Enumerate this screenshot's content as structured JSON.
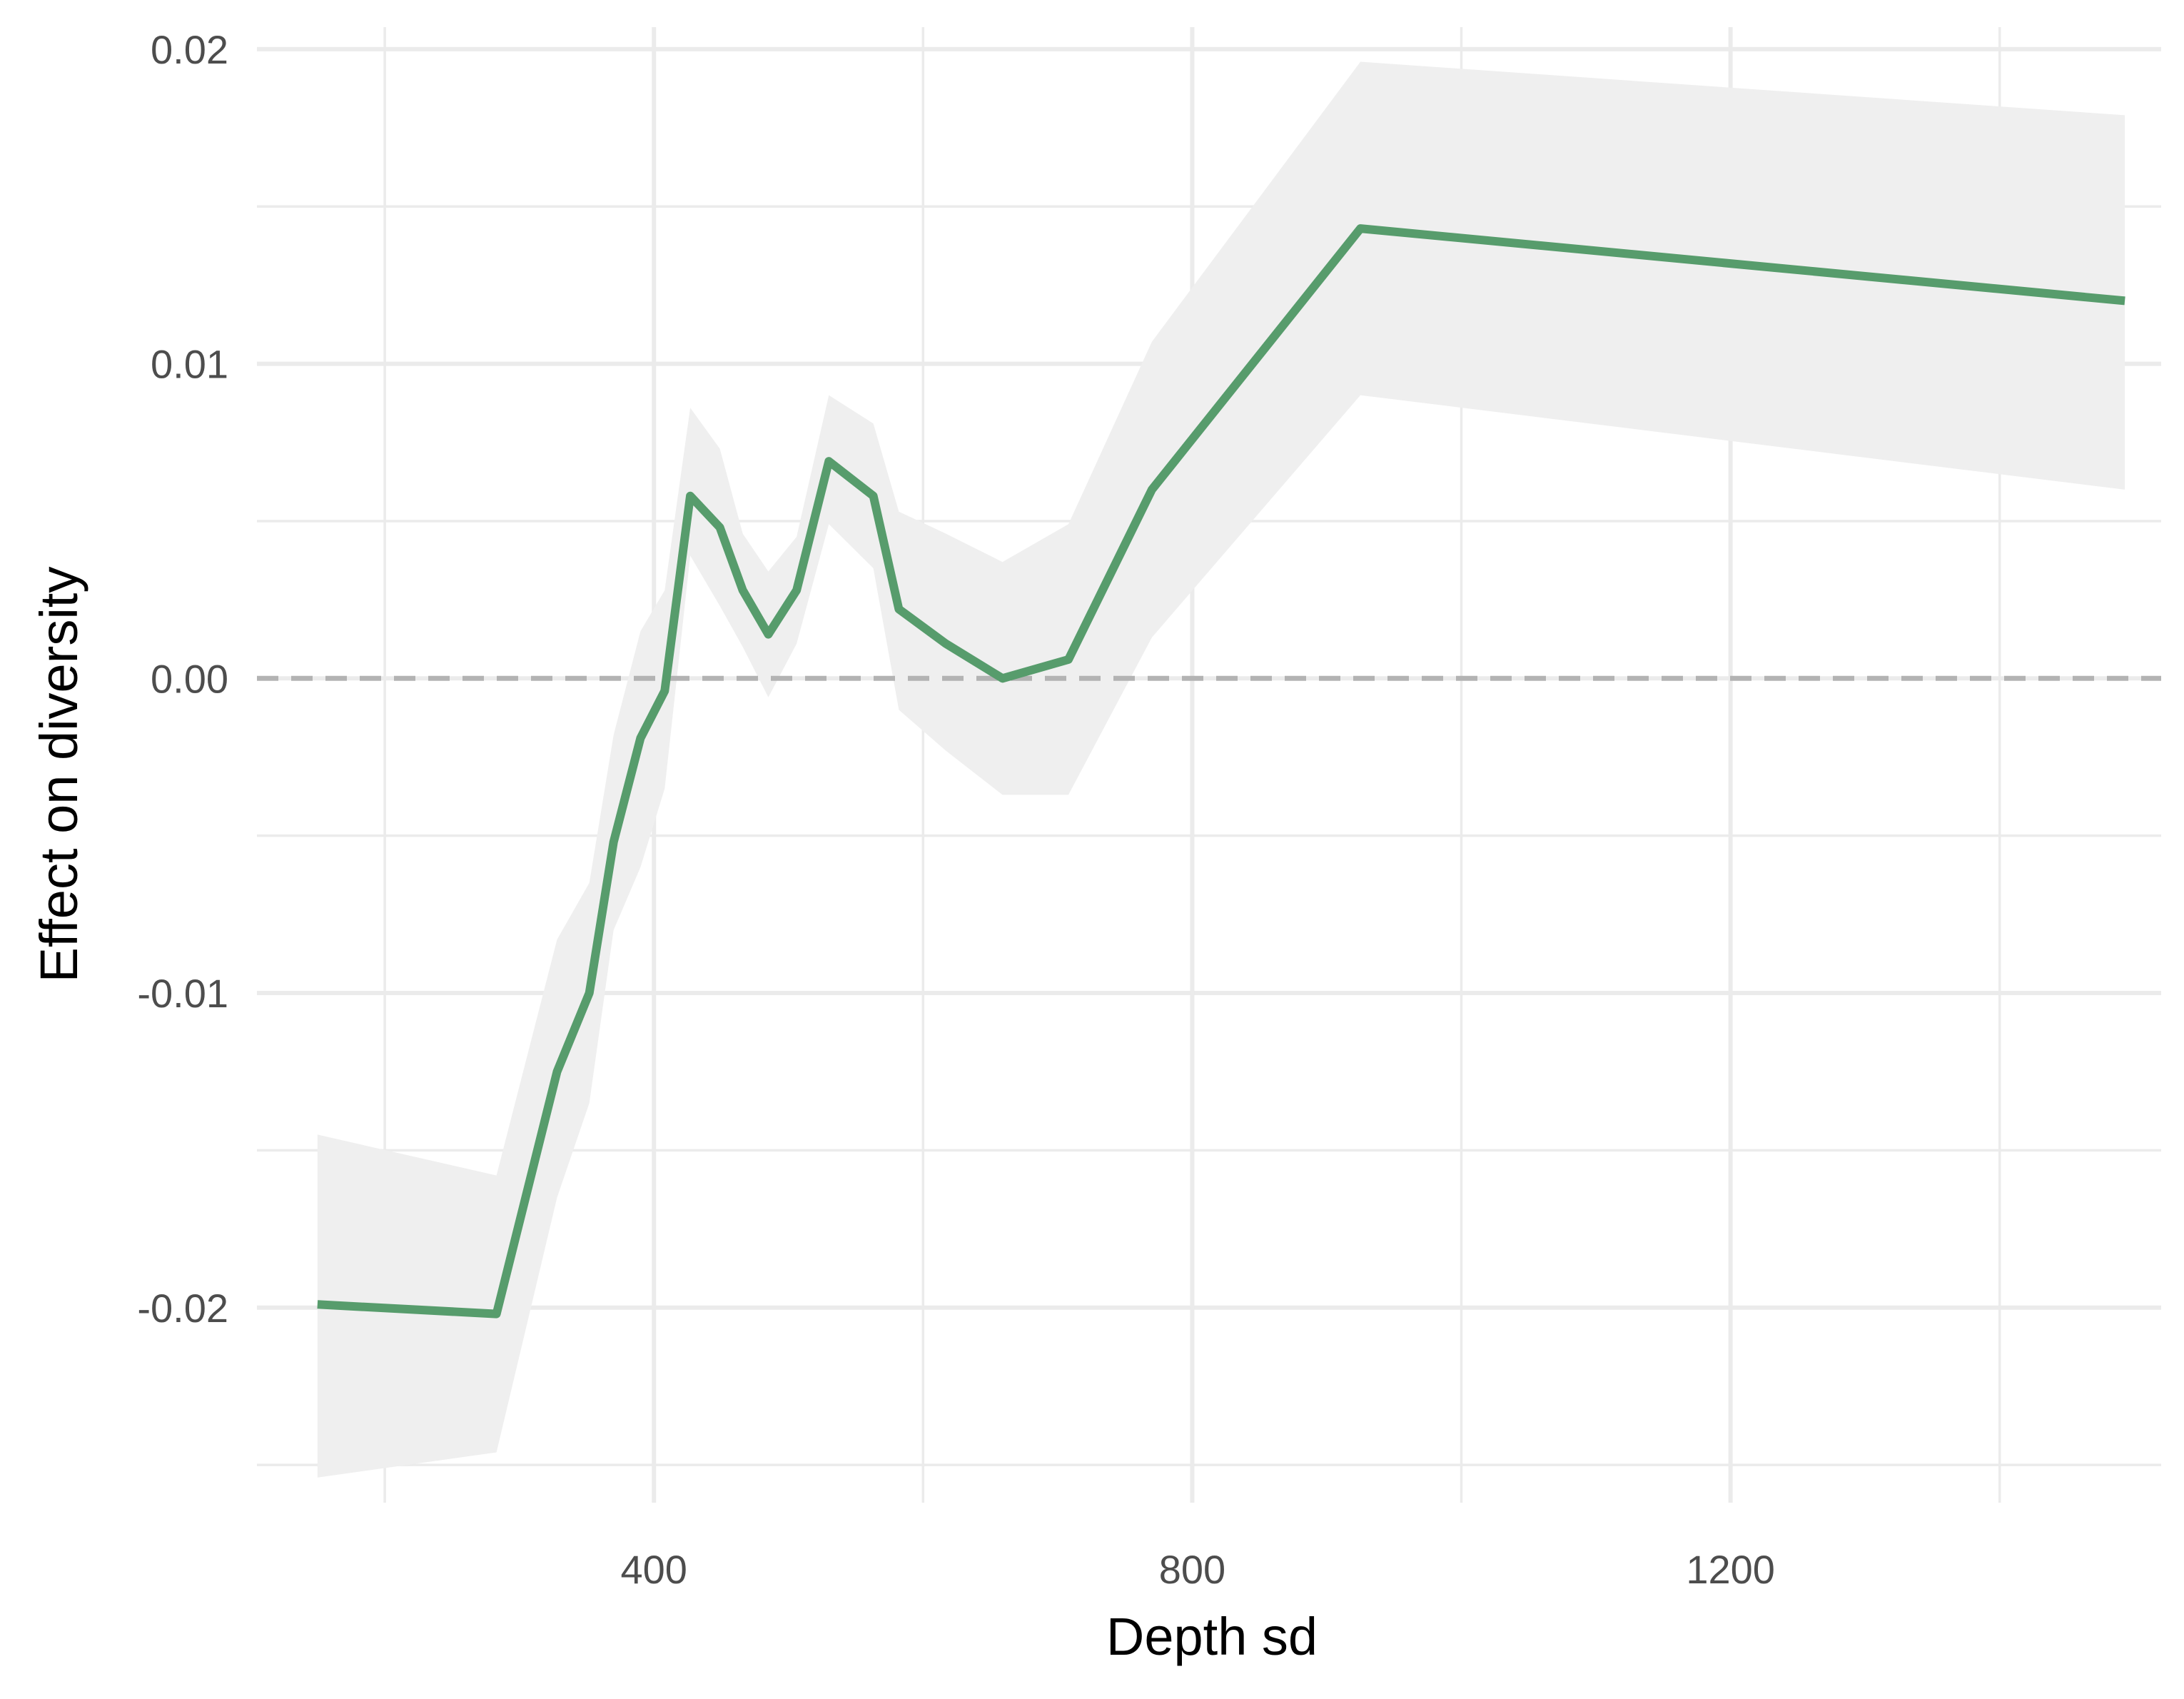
{
  "chart_data": {
    "type": "line",
    "xlabel": "Depth sd",
    "ylabel": "Effect on diversity",
    "xlim": [
      105,
      1520
    ],
    "ylim": [
      -0.0262,
      0.0207
    ],
    "x_ticks": [
      400,
      800,
      1200
    ],
    "x_tick_labels": [
      "400",
      "800",
      "1200"
    ],
    "x_minor_ticks": [
      200,
      600,
      1000,
      1400
    ],
    "y_ticks": [
      -0.02,
      -0.01,
      0.0,
      0.01,
      0.02
    ],
    "y_tick_labels": [
      "-0.02",
      "-0.01",
      "0.00",
      "0.01",
      "0.02"
    ],
    "y_minor_ticks": [
      -0.025,
      -0.015,
      -0.005,
      0.005,
      0.015
    ],
    "grid": true,
    "reference_line": {
      "y": 0,
      "style": "dashed",
      "color": "#b3b3b3"
    },
    "colors": {
      "line": "#579c6c",
      "ribbon": "#efefef",
      "grid": "#ebebeb"
    },
    "series": [
      {
        "x": [
          150,
          283,
          328,
          352,
          370,
          390,
          408,
          427,
          449,
          466,
          485,
          506,
          530,
          563,
          582,
          617,
          659,
          708,
          770,
          925,
          1493
        ],
        "y": [
          -0.0199,
          -0.0202,
          -0.0125,
          -0.01,
          -0.0052,
          -0.0019,
          -0.0004,
          0.0058,
          0.0048,
          0.0028,
          0.0014,
          0.0028,
          0.0069,
          0.0058,
          0.0022,
          0.0011,
          0.0,
          0.0006,
          0.006,
          0.0143,
          0.012
        ],
        "lower": [
          -0.0254,
          -0.0246,
          -0.0165,
          -0.0135,
          -0.008,
          -0.006,
          -0.0035,
          0.0039,
          0.0023,
          0.001,
          -0.0006,
          0.0011,
          0.0049,
          0.0035,
          -0.001,
          -0.0023,
          -0.0037,
          -0.0037,
          0.0013,
          0.009,
          0.006
        ],
        "upper": [
          -0.0145,
          -0.0158,
          -0.0083,
          -0.0065,
          -0.0018,
          0.0015,
          0.0028,
          0.0086,
          0.0073,
          0.0046,
          0.0034,
          0.0045,
          0.009,
          0.0081,
          0.0053,
          0.0046,
          0.0037,
          0.0049,
          0.0107,
          0.0196,
          0.0179
        ]
      }
    ]
  }
}
